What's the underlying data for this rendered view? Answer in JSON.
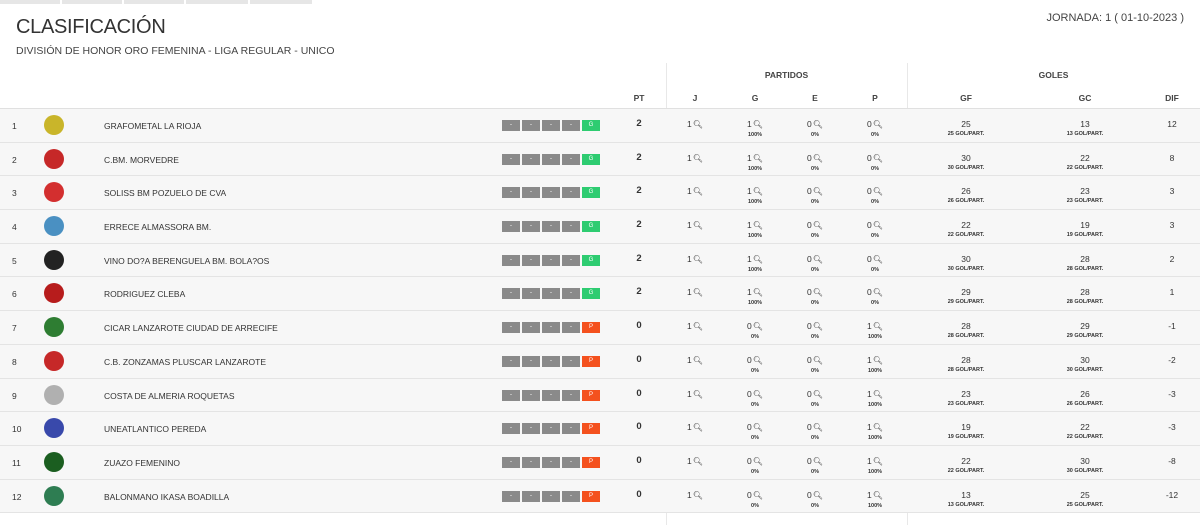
{
  "header": {
    "title": "CLASIFICACIÓN",
    "subtitle": "DIVISIÓN DE HONOR ORO FEMENINA - LIGA REGULAR - UNICO",
    "jornada": "JORNADA: 1 ( 01-10-2023 )"
  },
  "columns": {
    "partidos": "PARTIDOS",
    "goles": "GOLES",
    "pt": "PT",
    "j": "J",
    "g": "G",
    "e": "E",
    "p": "P",
    "gf": "GF",
    "gc": "GC",
    "dif": "DIF"
  },
  "colors": {
    "win": "#2ecc71",
    "loss": "#f4511e",
    "empty": "#8a8a8a"
  },
  "rows": [
    {
      "pos": "1",
      "team": "GRAFOMETAL LA RIOJA",
      "logo": "#c9b52a",
      "streak": [
        "-",
        "-",
        "-",
        "-",
        "G"
      ],
      "pt": "2",
      "j": "1",
      "g": "1",
      "gp": "100%",
      "e": "0",
      "ep": "0%",
      "p": "0",
      "pp": "0%",
      "gf": "25",
      "gfp": "25 GOL/PART.",
      "gc": "13",
      "gcp": "13 GOL/PART.",
      "dif": "12"
    },
    {
      "pos": "2",
      "team": "C.BM. MORVEDRE",
      "logo": "#c62828",
      "streak": [
        "-",
        "-",
        "-",
        "-",
        "G"
      ],
      "pt": "2",
      "j": "1",
      "g": "1",
      "gp": "100%",
      "e": "0",
      "ep": "0%",
      "p": "0",
      "pp": "0%",
      "gf": "30",
      "gfp": "30 GOL/PART.",
      "gc": "22",
      "gcp": "22 GOL/PART.",
      "dif": "8"
    },
    {
      "pos": "3",
      "team": "SOLISS BM POZUELO DE CVA",
      "logo": "#d32f2f",
      "streak": [
        "-",
        "-",
        "-",
        "-",
        "G"
      ],
      "pt": "2",
      "j": "1",
      "g": "1",
      "gp": "100%",
      "e": "0",
      "ep": "0%",
      "p": "0",
      "pp": "0%",
      "gf": "26",
      "gfp": "26 GOL/PART.",
      "gc": "23",
      "gcp": "23 GOL/PART.",
      "dif": "3"
    },
    {
      "pos": "4",
      "team": "ERRECE ALMASSORA BM.",
      "logo": "#4a90c2",
      "streak": [
        "-",
        "-",
        "-",
        "-",
        "G"
      ],
      "pt": "2",
      "j": "1",
      "g": "1",
      "gp": "100%",
      "e": "0",
      "ep": "0%",
      "p": "0",
      "pp": "0%",
      "gf": "22",
      "gfp": "22 GOL/PART.",
      "gc": "19",
      "gcp": "19 GOL/PART.",
      "dif": "3"
    },
    {
      "pos": "5",
      "team": "VINO DO?A BERENGUELA BM. BOLA?OS",
      "logo": "#222222",
      "streak": [
        "-",
        "-",
        "-",
        "-",
        "G"
      ],
      "pt": "2",
      "j": "1",
      "g": "1",
      "gp": "100%",
      "e": "0",
      "ep": "0%",
      "p": "0",
      "pp": "0%",
      "gf": "30",
      "gfp": "30 GOL/PART.",
      "gc": "28",
      "gcp": "28 GOL/PART.",
      "dif": "2"
    },
    {
      "pos": "6",
      "team": "RODRIGUEZ CLEBA",
      "logo": "#b71c1c",
      "streak": [
        "-",
        "-",
        "-",
        "-",
        "G"
      ],
      "pt": "2",
      "j": "1",
      "g": "1",
      "gp": "100%",
      "e": "0",
      "ep": "0%",
      "p": "0",
      "pp": "0%",
      "gf": "29",
      "gfp": "29 GOL/PART.",
      "gc": "28",
      "gcp": "28 GOL/PART.",
      "dif": "1"
    },
    {
      "pos": "7",
      "team": "CICAR LANZAROTE CIUDAD DE ARRECIFE",
      "logo": "#2e7d32",
      "streak": [
        "-",
        "-",
        "-",
        "-",
        "P"
      ],
      "pt": "0",
      "j": "1",
      "g": "0",
      "gp": "0%",
      "e": "0",
      "ep": "0%",
      "p": "1",
      "pp": "100%",
      "gf": "28",
      "gfp": "28 GOL/PART.",
      "gc": "29",
      "gcp": "29 GOL/PART.",
      "dif": "-1"
    },
    {
      "pos": "8",
      "team": "C.B. ZONZAMAS PLUSCAR LANZAROTE",
      "logo": "#c62828",
      "streak": [
        "-",
        "-",
        "-",
        "-",
        "P"
      ],
      "pt": "0",
      "j": "1",
      "g": "0",
      "gp": "0%",
      "e": "0",
      "ep": "0%",
      "p": "1",
      "pp": "100%",
      "gf": "28",
      "gfp": "28 GOL/PART.",
      "gc": "30",
      "gcp": "30 GOL/PART.",
      "dif": "-2"
    },
    {
      "pos": "9",
      "team": "COSTA DE ALMERIA ROQUETAS",
      "logo": "#b0b0b0",
      "streak": [
        "-",
        "-",
        "-",
        "-",
        "P"
      ],
      "pt": "0",
      "j": "1",
      "g": "0",
      "gp": "0%",
      "e": "0",
      "ep": "0%",
      "p": "1",
      "pp": "100%",
      "gf": "23",
      "gfp": "23 GOL/PART.",
      "gc": "26",
      "gcp": "26 GOL/PART.",
      "dif": "-3"
    },
    {
      "pos": "10",
      "team": "UNEATLANTICO PEREDA",
      "logo": "#3949ab",
      "streak": [
        "-",
        "-",
        "-",
        "-",
        "P"
      ],
      "pt": "0",
      "j": "1",
      "g": "0",
      "gp": "0%",
      "e": "0",
      "ep": "0%",
      "p": "1",
      "pp": "100%",
      "gf": "19",
      "gfp": "19 GOL/PART.",
      "gc": "22",
      "gcp": "22 GOL/PART.",
      "dif": "-3"
    },
    {
      "pos": "11",
      "team": "ZUAZO FEMENINO",
      "logo": "#1b5e20",
      "streak": [
        "-",
        "-",
        "-",
        "-",
        "P"
      ],
      "pt": "0",
      "j": "1",
      "g": "0",
      "gp": "0%",
      "e": "0",
      "ep": "0%",
      "p": "1",
      "pp": "100%",
      "gf": "22",
      "gfp": "22 GOL/PART.",
      "gc": "30",
      "gcp": "30 GOL/PART.",
      "dif": "-8"
    },
    {
      "pos": "12",
      "team": "BALONMANO IKASA BOADILLA",
      "logo": "#2e7d52",
      "streak": [
        "-",
        "-",
        "-",
        "-",
        "P"
      ],
      "pt": "0",
      "j": "1",
      "g": "0",
      "gp": "0%",
      "e": "0",
      "ep": "0%",
      "p": "1",
      "pp": "100%",
      "gf": "13",
      "gfp": "13 GOL/PART.",
      "gc": "25",
      "gcp": "25 GOL/PART.",
      "dif": "-12"
    }
  ]
}
